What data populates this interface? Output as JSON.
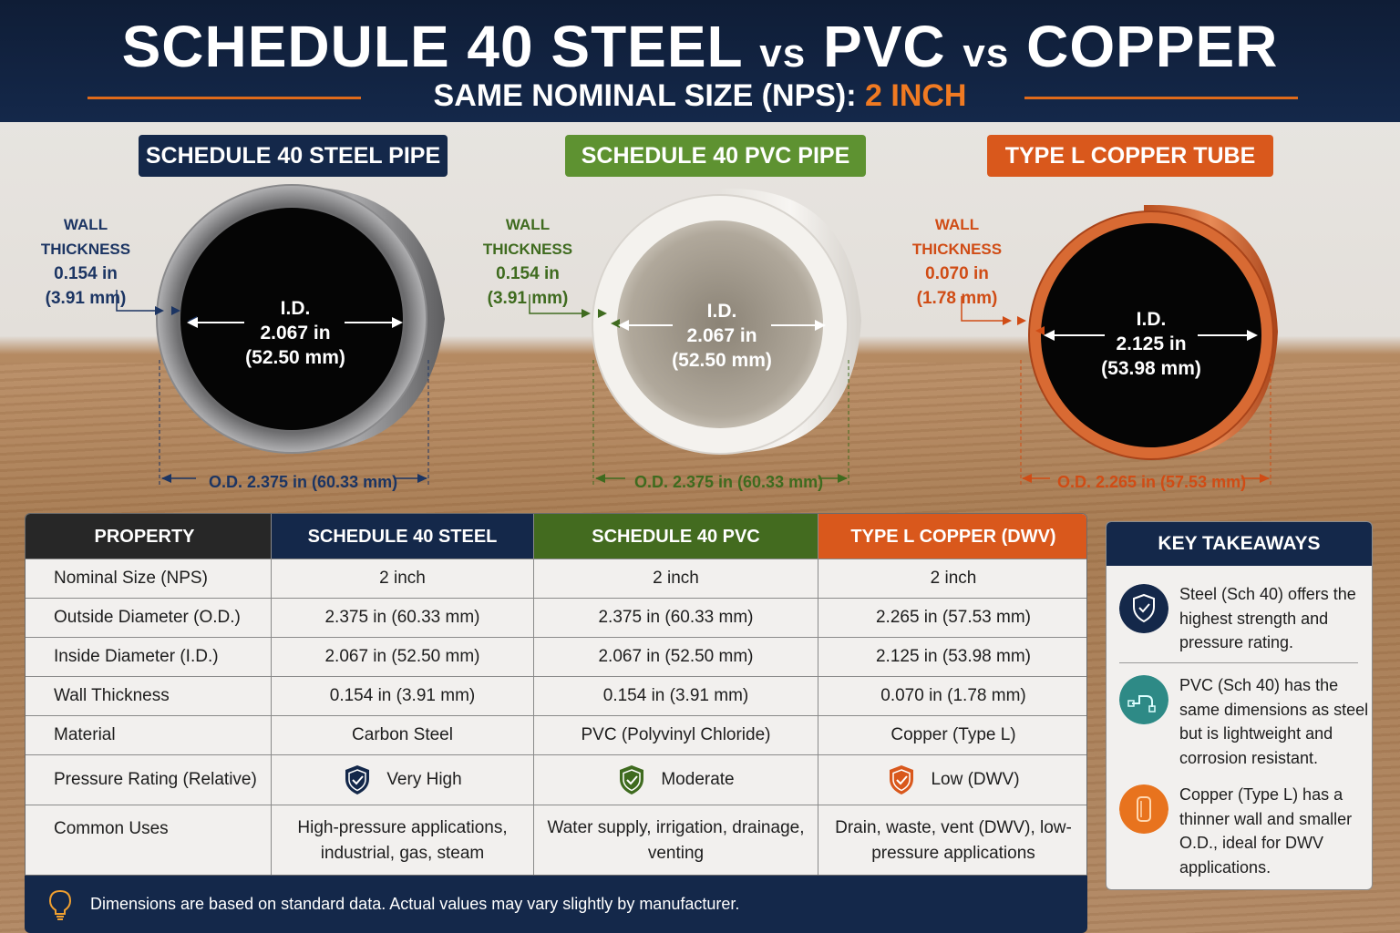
{
  "header": {
    "title_part1": "SCHEDULE 40 STEEL",
    "vs1": "vs",
    "title_part2": "PVC",
    "vs2": "vs",
    "title_part3": "COPPER",
    "subtitle_prefix": "SAME NOMINAL SIZE (NPS):",
    "subtitle_highlight": "2 INCH"
  },
  "pipes": {
    "steel": {
      "label": "SCHEDULE 40 STEEL PIPE",
      "wall_label": "WALL THICKNESS",
      "wall_in": "0.154 in",
      "wall_mm": "(3.91 mm)",
      "id_label": "I.D.",
      "id_in": "2.067 in",
      "id_mm": "(52.50 mm)",
      "od": "O.D. 2.375 in (60.33 mm)",
      "color": "#14284a"
    },
    "pvc": {
      "label": "SCHEDULE 40 PVC PIPE",
      "wall_label": "WALL THICKNESS",
      "wall_in": "0.154 in",
      "wall_mm": "(3.91 mm)",
      "id_label": "I.D.",
      "id_in": "2.067 in",
      "id_mm": "(52.50 mm)",
      "od": "O.D. 2.375 in (60.33 mm)",
      "color": "#5e9231"
    },
    "copper": {
      "label": "TYPE L COPPER TUBE",
      "wall_label": "WALL THICKNESS",
      "wall_in": "0.070 in",
      "wall_mm": "(1.78 mm)",
      "id_label": "I.D.",
      "id_in": "2.125 in",
      "id_mm": "(53.98 mm)",
      "od": "O.D. 2.265 in (57.53 mm)",
      "color": "#d9581c"
    }
  },
  "table": {
    "headers": [
      "PROPERTY",
      "SCHEDULE 40 STEEL",
      "SCHEDULE 40 PVC",
      "TYPE L COPPER (DWV)"
    ],
    "rows": [
      [
        "Nominal Size (NPS)",
        "2 inch",
        "2 inch",
        "2 inch"
      ],
      [
        "Outside Diameter (O.D.)",
        "2.375 in (60.33 mm)",
        "2.375 in (60.33 mm)",
        "2.265 in (57.53 mm)"
      ],
      [
        "Inside Diameter (I.D.)",
        "2.067 in (52.50 mm)",
        "2.067 in (52.50 mm)",
        "2.125 in (53.98 mm)"
      ],
      [
        "Wall Thickness",
        "0.154 in (3.91 mm)",
        "0.154 in (3.91 mm)",
        "0.070 in (1.78 mm)"
      ],
      [
        "Material",
        "Carbon Steel",
        "PVC (Polyvinyl Chloride)",
        "Copper (Type L)"
      ],
      [
        "Pressure Rating (Relative)",
        "Very High",
        "Moderate",
        "Low (DWV)"
      ],
      [
        "Common Uses",
        "High-pressure applications, industrial, gas, steam",
        "Water supply, irrigation, drainage, venting",
        "Drain, waste, vent (DWV), low-pressure applications"
      ]
    ],
    "shield_icons": [
      "shield-check-icon",
      "shield-check-icon",
      "shield-check-icon"
    ],
    "shield_colors": [
      "#14284a",
      "#3f6b1f",
      "#d9581c"
    ],
    "footer_icon": "lightbulb-icon",
    "footer": "Dimensions are based on standard data. Actual values may vary slightly by manufacturer."
  },
  "takeaways": {
    "title": "KEY TAKEAWAYS",
    "items": [
      {
        "icon": "shield-check-icon",
        "color": "#14284a",
        "text": "Steel (Sch 40) offers the highest strength and pressure rating."
      },
      {
        "icon": "pipe-fitting-icon",
        "color": "#2e8a86",
        "text": "PVC (Sch 40) has the same dimensions as steel but is lightweight and corrosion resistant."
      },
      {
        "icon": "copper-tube-icon",
        "color": "#e8731e",
        "text": "Copper (Type L) has a thinner wall and smaller O.D., ideal for DWV applications."
      }
    ]
  }
}
